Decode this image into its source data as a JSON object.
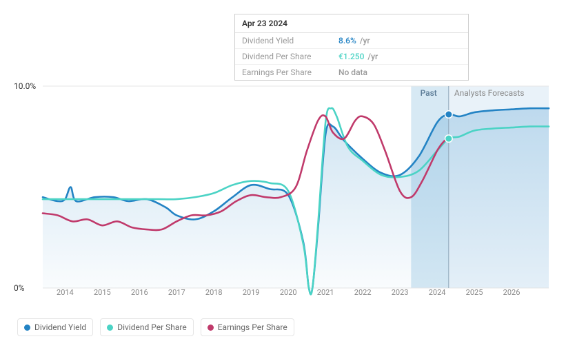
{
  "tooltip": {
    "date": "Apr 23 2024",
    "rows": [
      {
        "label": "Dividend Yield",
        "value": "8.6%",
        "unit": "/yr",
        "color": "#2383c4"
      },
      {
        "label": "Dividend Per Share",
        "value": "€1.250",
        "unit": "/yr",
        "color": "#4bd3c5"
      },
      {
        "label": "Earnings Per Share",
        "value": "No data",
        "unit": "",
        "color": "#999999"
      }
    ]
  },
  "chart": {
    "type": "line",
    "x_domain": [
      2013.4,
      2027
    ],
    "y_domain": [
      0,
      10
    ],
    "y_ticks": [
      {
        "v": 0,
        "label": "0%"
      },
      {
        "v": 10,
        "label": "10.0%"
      }
    ],
    "x_ticks": [
      2014,
      2015,
      2016,
      2017,
      2018,
      2019,
      2020,
      2021,
      2022,
      2023,
      2024,
      2025,
      2026
    ],
    "grid_color": "#e6e6e6",
    "background_color": "#ffffff",
    "past_cutoff": 2023.3,
    "tooltip_x": 2024.31,
    "past_label": "Past",
    "forecast_label": "Analysts Forecasts",
    "past_shade_color": "rgba(35,131,196,0.18)",
    "forecast_shade_color": "rgba(35,131,196,0.10)",
    "area_gradient_top": "rgba(35,131,196,0.22)",
    "area_gradient_bottom": "rgba(35,131,196,0.02)",
    "cursor_line_color": "#8fa6b8",
    "marker_radius": 4.5,
    "line_width": 2.6,
    "series": [
      {
        "name": "Dividend Yield",
        "color": "#2383c4",
        "area": true,
        "marker_at_cursor": true,
        "data": [
          [
            2013.4,
            4.5
          ],
          [
            2013.8,
            4.3
          ],
          [
            2014.0,
            4.4
          ],
          [
            2014.15,
            5.0
          ],
          [
            2014.3,
            4.3
          ],
          [
            2014.8,
            4.5
          ],
          [
            2015.3,
            4.5
          ],
          [
            2015.7,
            4.3
          ],
          [
            2016.2,
            4.4
          ],
          [
            2016.7,
            4.0
          ],
          [
            2017.0,
            3.6
          ],
          [
            2017.5,
            3.4
          ],
          [
            2018.0,
            3.8
          ],
          [
            2018.5,
            4.5
          ],
          [
            2019.0,
            5.1
          ],
          [
            2019.5,
            4.9
          ],
          [
            2020.0,
            4.6
          ],
          [
            2020.4,
            2.3
          ],
          [
            2020.55,
            0.02
          ],
          [
            2020.65,
            0.02
          ],
          [
            2020.8,
            3.0
          ],
          [
            2021.0,
            7.6
          ],
          [
            2021.2,
            8.0
          ],
          [
            2021.5,
            7.3
          ],
          [
            2022.0,
            6.4
          ],
          [
            2022.5,
            5.7
          ],
          [
            2023.0,
            5.6
          ],
          [
            2023.5,
            6.5
          ],
          [
            2024.0,
            8.2
          ],
          [
            2024.31,
            8.6
          ],
          [
            2024.6,
            8.5
          ],
          [
            2025.0,
            8.7
          ],
          [
            2025.5,
            8.8
          ],
          [
            2026.0,
            8.85
          ],
          [
            2026.5,
            8.9
          ],
          [
            2027.0,
            8.9
          ]
        ]
      },
      {
        "name": "Dividend Per Share",
        "color": "#4bd3c5",
        "area": false,
        "marker_at_cursor": true,
        "data": [
          [
            2013.4,
            4.4
          ],
          [
            2014.0,
            4.4
          ],
          [
            2014.5,
            4.4
          ],
          [
            2015.0,
            4.4
          ],
          [
            2015.5,
            4.4
          ],
          [
            2016.0,
            4.4
          ],
          [
            2016.5,
            4.4
          ],
          [
            2017.0,
            4.4
          ],
          [
            2017.5,
            4.5
          ],
          [
            2018.0,
            4.7
          ],
          [
            2018.5,
            5.1
          ],
          [
            2019.0,
            5.3
          ],
          [
            2019.5,
            5.2
          ],
          [
            2020.0,
            4.8
          ],
          [
            2020.4,
            2.2
          ],
          [
            2020.55,
            0.02
          ],
          [
            2020.65,
            0.02
          ],
          [
            2020.8,
            3.2
          ],
          [
            2021.0,
            8.2
          ],
          [
            2021.15,
            8.9
          ],
          [
            2021.3,
            8.5
          ],
          [
            2021.6,
            7.0
          ],
          [
            2022.0,
            6.3
          ],
          [
            2022.5,
            5.6
          ],
          [
            2023.0,
            5.5
          ],
          [
            2023.5,
            5.8
          ],
          [
            2024.0,
            6.8
          ],
          [
            2024.31,
            7.4
          ],
          [
            2024.6,
            7.5
          ],
          [
            2025.0,
            7.8
          ],
          [
            2025.5,
            7.9
          ],
          [
            2026.0,
            7.95
          ],
          [
            2026.5,
            8.0
          ],
          [
            2027.0,
            8.0
          ]
        ]
      },
      {
        "name": "Earnings Per Share",
        "color": "#c03a6b",
        "area": false,
        "marker_at_cursor": false,
        "data": [
          [
            2013.4,
            3.7
          ],
          [
            2013.8,
            3.6
          ],
          [
            2014.2,
            3.3
          ],
          [
            2014.6,
            3.4
          ],
          [
            2015.0,
            3.1
          ],
          [
            2015.4,
            3.3
          ],
          [
            2015.8,
            3.0
          ],
          [
            2016.2,
            2.9
          ],
          [
            2016.6,
            2.9
          ],
          [
            2017.0,
            3.3
          ],
          [
            2017.4,
            3.6
          ],
          [
            2017.8,
            3.6
          ],
          [
            2018.2,
            3.8
          ],
          [
            2018.6,
            4.3
          ],
          [
            2019.0,
            4.6
          ],
          [
            2019.4,
            4.5
          ],
          [
            2019.8,
            4.5
          ],
          [
            2020.2,
            5.0
          ],
          [
            2020.5,
            6.8
          ],
          [
            2020.8,
            8.3
          ],
          [
            2021.0,
            8.5
          ],
          [
            2021.2,
            7.7
          ],
          [
            2021.5,
            7.4
          ],
          [
            2021.8,
            8.3
          ],
          [
            2022.0,
            8.5
          ],
          [
            2022.3,
            8.1
          ],
          [
            2022.6,
            6.8
          ],
          [
            2023.0,
            4.8
          ],
          [
            2023.3,
            4.5
          ],
          [
            2023.6,
            5.3
          ],
          [
            2024.0,
            6.8
          ],
          [
            2024.2,
            7.3
          ]
        ]
      }
    ]
  },
  "legend": [
    {
      "label": "Dividend Yield",
      "color": "#2383c4"
    },
    {
      "label": "Dividend Per Share",
      "color": "#4bd3c5"
    },
    {
      "label": "Earnings Per Share",
      "color": "#c03a6b"
    }
  ]
}
